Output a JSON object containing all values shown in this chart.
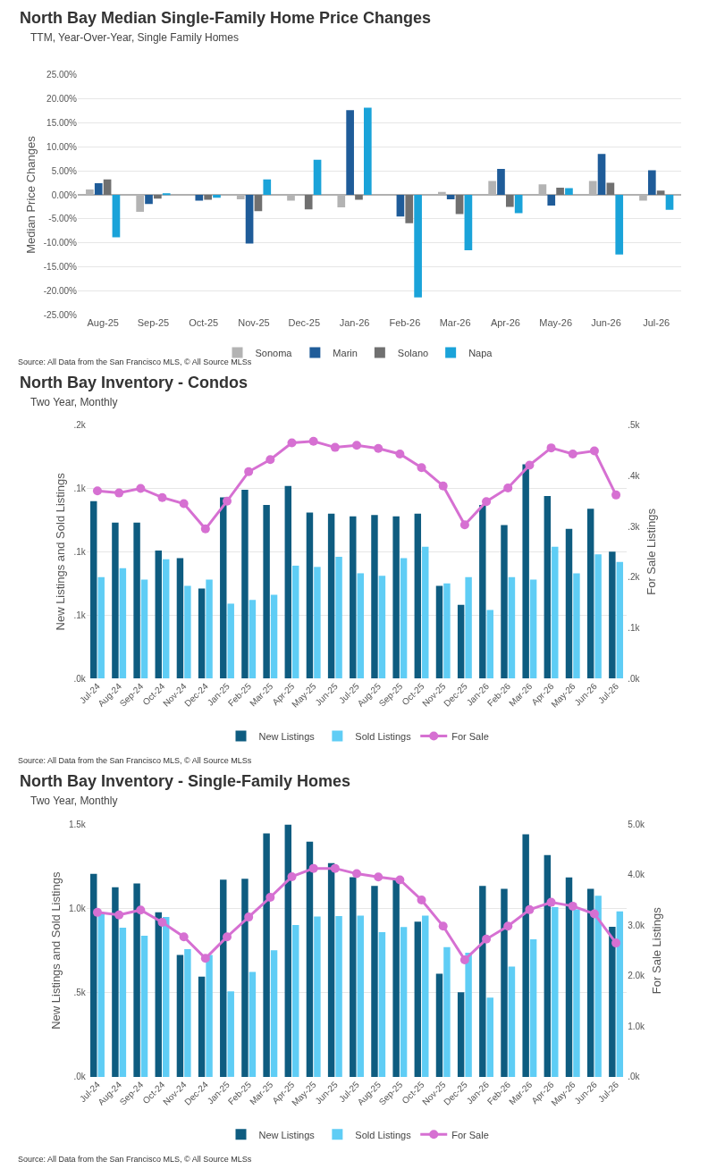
{
  "chart_data": [
    {
      "type": "bar",
      "title": "North Bay Median Single-Family Home Price Changes",
      "subtitle": "TTM, Year-Over-Year, Single Family Homes",
      "ylabel": "Median Price Changes",
      "categories": [
        "Aug-25",
        "Sep-25",
        "Oct-25",
        "Nov-25",
        "Dec-25",
        "Jan-26",
        "Feb-26",
        "Mar-26",
        "Apr-26",
        "May-26",
        "Jun-26",
        "Jul-26"
      ],
      "series": [
        {
          "name": "Sonoma",
          "color": "#b3b3b3",
          "values": [
            1.1,
            -3.5,
            0,
            -0.9,
            -1.2,
            -2.6,
            0,
            0.6,
            2.9,
            2.2,
            2.9,
            -1.2
          ]
        },
        {
          "name": "Marin",
          "color": "#1f5c99",
          "values": [
            2.4,
            -1.9,
            -1.2,
            -10.1,
            0,
            17.6,
            -4.5,
            -0.9,
            5.4,
            -2.2,
            8.5,
            5.1
          ]
        },
        {
          "name": "Solano",
          "color": "#707070",
          "values": [
            3.2,
            -0.8,
            -1.0,
            -3.4,
            -3.0,
            -1.0,
            -5.9,
            -4.0,
            -2.5,
            1.5,
            2.5,
            0.9
          ]
        },
        {
          "name": "Napa",
          "color": "#1aa3d9",
          "values": [
            -8.8,
            0.2,
            -0.6,
            3.2,
            7.3,
            18.1,
            -21.3,
            -11.5,
            -3.8,
            1.4,
            -12.4,
            -3.1
          ]
        }
      ],
      "ylim": [
        -25,
        25
      ],
      "yticks": [
        {
          "value": -25,
          "label": "-25.00%"
        },
        {
          "value": -20,
          "label": "-20.00%"
        },
        {
          "value": -15,
          "label": "-15.00%"
        },
        {
          "value": -10,
          "label": "-10.00%"
        },
        {
          "value": -5,
          "label": "-5.00%"
        },
        {
          "value": 0,
          "label": "0.00%"
        },
        {
          "value": 5,
          "label": "5.00%"
        },
        {
          "value": 10,
          "label": "10.00%"
        },
        {
          "value": 15,
          "label": "15.00%"
        },
        {
          "value": 20,
          "label": "20.00%"
        },
        {
          "value": 25,
          "label": "25.00%"
        }
      ],
      "grid": "y",
      "legend": "bottom",
      "annotations": [
        "Source: All Data from the San Francisco MLS, © All Source MLSs"
      ]
    },
    {
      "type": "bar",
      "title": "North Bay Inventory - Condos",
      "subtitle": "Two Year, Monthly",
      "ylabel": "New Listings and Sold Listings",
      "y2label": "For Sale Listings",
      "categories": [
        "Jul-24",
        "Aug-24",
        "Sep-24",
        "Oct-24",
        "Nov-24",
        "Dec-24",
        "Jan-25",
        "Feb-25",
        "Mar-25",
        "Apr-25",
        "May-25",
        "Jun-25",
        "Jul-25",
        "Aug-25",
        "Sep-25",
        "Oct-25",
        "Nov-25",
        "Dec-25",
        "Jan-26",
        "Feb-26",
        "Mar-26",
        "Apr-26",
        "May-26",
        "Jun-26",
        "Jul-26"
      ],
      "series": [
        {
          "name": "New Listings",
          "color": "#0e5c80",
          "values": [
            140,
            123,
            123,
            101,
            95,
            71,
            143,
            149,
            137,
            152,
            131,
            130,
            128,
            129,
            128,
            130,
            73,
            58,
            137,
            121,
            169,
            144,
            118,
            134,
            100
          ]
        },
        {
          "name": "Sold Listings",
          "color": "#5fcdf5",
          "values": [
            80,
            87,
            78,
            94,
            73,
            78,
            59,
            62,
            66,
            89,
            88,
            96,
            83,
            81,
            95,
            104,
            75,
            80,
            54,
            80,
            78,
            104,
            83,
            98,
            92
          ]
        },
        {
          "name": "For Sale",
          "type": "line",
          "axis": "y2",
          "color": "#d670d2",
          "values": [
            370,
            366,
            375,
            357,
            345,
            295,
            350,
            408,
            432,
            465,
            468,
            456,
            460,
            454,
            443,
            416,
            380,
            303,
            349,
            376,
            421,
            455,
            443,
            449,
            362
          ]
        }
      ],
      "ylim": [
        0,
        200
      ],
      "yticks": [
        {
          "value": 0,
          "label": ".0k"
        },
        {
          "value": 50,
          "label": ".1k"
        },
        {
          "value": 100,
          "label": ".1k"
        },
        {
          "value": 150,
          "label": ".1k"
        },
        {
          "value": 200,
          "label": ".2k"
        }
      ],
      "y2lim": [
        0,
        500
      ],
      "y2ticks": [
        {
          "value": 0,
          "label": ".0k"
        },
        {
          "value": 100,
          "label": ".1k"
        },
        {
          "value": 200,
          "label": ".2k"
        },
        {
          "value": 300,
          "label": ".3k"
        },
        {
          "value": 400,
          "label": ".4k"
        },
        {
          "value": 500,
          "label": ".5k"
        }
      ],
      "grid": "y",
      "legend": "bottom",
      "marker": "circle",
      "line_style": "solid",
      "annotations": [
        "Source: All Data from the San Francisco MLS, © All Source MLSs"
      ]
    },
    {
      "type": "bar",
      "title": "North Bay Inventory - Single-Family Homes",
      "subtitle": "Two Year, Monthly",
      "ylabel": "New Listings and Sold Listings",
      "y2label": "For Sale Listings",
      "categories": [
        "Jul-24",
        "Aug-24",
        "Sep-24",
        "Oct-24",
        "Nov-24",
        "Dec-24",
        "Jan-25",
        "Feb-25",
        "Mar-25",
        "Apr-25",
        "May-25",
        "Jun-25",
        "Jul-25",
        "Aug-25",
        "Sep-25",
        "Oct-25",
        "Nov-25",
        "Dec-25",
        "Jan-26",
        "Feb-26",
        "Mar-26",
        "Apr-26",
        "May-26",
        "Jun-26",
        "Jul-26"
      ],
      "series": [
        {
          "name": "New Listings",
          "color": "#0e5c80",
          "values": [
            1207,
            1127,
            1150,
            978,
            724,
            596,
            1172,
            1178,
            1447,
            1500,
            1398,
            1270,
            1186,
            1135,
            1172,
            922,
            613,
            503,
            1135,
            1118,
            1442,
            1318,
            1185,
            1118,
            892
          ]
        },
        {
          "name": "Sold Listings",
          "color": "#5fcdf5",
          "values": [
            971,
            887,
            839,
            950,
            759,
            725,
            508,
            624,
            753,
            902,
            953,
            955,
            958,
            860,
            890,
            958,
            771,
            738,
            471,
            655,
            817,
            1009,
            995,
            1076,
            983
          ]
        },
        {
          "name": "For Sale",
          "type": "line",
          "axis": "y2",
          "color": "#d670d2",
          "values": [
            3259,
            3207,
            3306,
            3061,
            2775,
            2348,
            2775,
            3166,
            3557,
            3966,
            4130,
            4130,
            4025,
            3960,
            3902,
            3505,
            2985,
            2319,
            2728,
            2985,
            3312,
            3458,
            3382,
            3230,
            2652
          ]
        }
      ],
      "ylim": [
        0,
        1500
      ],
      "yticks": [
        {
          "value": 0,
          "label": ".0k"
        },
        {
          "value": 500,
          "label": ".5k"
        },
        {
          "value": 1000,
          "label": "1.0k"
        },
        {
          "value": 1500,
          "label": "1.5k"
        }
      ],
      "y2lim": [
        0,
        5000
      ],
      "y2ticks": [
        {
          "value": 0,
          "label": ".0k"
        },
        {
          "value": 1000,
          "label": "1.0k"
        },
        {
          "value": 2000,
          "label": "2.0k"
        },
        {
          "value": 3000,
          "label": "3.0k"
        },
        {
          "value": 4000,
          "label": "4.0k"
        },
        {
          "value": 5000,
          "label": "5.0k"
        }
      ],
      "grid": "y",
      "legend": "bottom",
      "marker": "circle",
      "line_style": "solid",
      "annotations": [
        "Source: All Data from the San Francisco MLS, © All Source MLSs"
      ]
    }
  ]
}
